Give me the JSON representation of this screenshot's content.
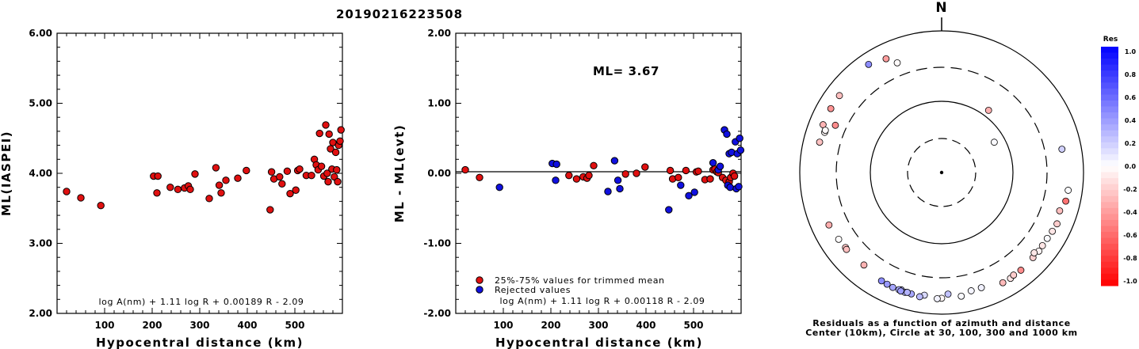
{
  "figure_title": "20190216223508",
  "chart_data": [
    {
      "type": "scatter",
      "ylabel": "ML(IASPEI)",
      "xlabel": "Hypocentral distance (km)",
      "xlim": [
        0,
        600
      ],
      "ylim": [
        2.0,
        6.0
      ],
      "yticks": [
        "2.00",
        "3.00",
        "4.00",
        "5.00",
        "6.00"
      ],
      "xticks": [
        "100",
        "200",
        "300",
        "400",
        "500"
      ],
      "formula": "log A(nm) + 1.11 log R + 0.00189 R - 2.09",
      "series": [
        {
          "color": "#e01010",
          "points": [
            [
              20,
              3.74
            ],
            [
              50,
              3.65
            ],
            [
              92,
              3.54
            ],
            [
              203,
              3.96
            ],
            [
              212,
              3.96
            ],
            [
              210,
              3.72
            ],
            [
              238,
              3.8
            ],
            [
              254,
              3.77
            ],
            [
              268,
              3.79
            ],
            [
              276,
              3.82
            ],
            [
              280,
              3.77
            ],
            [
              290,
              3.99
            ],
            [
              320,
              3.64
            ],
            [
              334,
              4.08
            ],
            [
              341,
              3.83
            ],
            [
              345,
              3.72
            ],
            [
              355,
              3.9
            ],
            [
              380,
              3.93
            ],
            [
              398,
              4.04
            ],
            [
              448,
              3.48
            ],
            [
              451,
              4.02
            ],
            [
              456,
              3.92
            ],
            [
              468,
              3.95
            ],
            [
              473,
              3.85
            ],
            [
              484,
              4.03
            ],
            [
              490,
              3.71
            ],
            [
              502,
              3.76
            ],
            [
              506,
              4.04
            ],
            [
              510,
              4.06
            ],
            [
              524,
              3.97
            ],
            [
              535,
              3.97
            ],
            [
              541,
              4.2
            ],
            [
              545,
              4.12
            ],
            [
              549,
              4.05
            ],
            [
              552,
              4.57
            ],
            [
              556,
              4.1
            ],
            [
              561,
              3.96
            ],
            [
              565,
              4.69
            ],
            [
              568,
              4.0
            ],
            [
              570,
              3.88
            ],
            [
              572,
              4.56
            ],
            [
              575,
              4.35
            ],
            [
              578,
              4.06
            ],
            [
              580,
              4.44
            ],
            [
              583,
              3.95
            ],
            [
              586,
              4.3
            ],
            [
              588,
              4.05
            ],
            [
              590,
              3.88
            ],
            [
              592,
              4.4
            ],
            [
              595,
              4.46
            ],
            [
              597,
              4.62
            ]
          ]
        }
      ]
    },
    {
      "type": "scatter",
      "ylabel": "ML - ML(evt)",
      "xlabel": "Hypocentral distance (km)",
      "xlim": [
        0,
        600
      ],
      "ylim": [
        -2.0,
        2.0
      ],
      "yticks": [
        "-2.00",
        "-1.00",
        "0.00",
        "1.00",
        "2.00"
      ],
      "xticks": [
        "100",
        "200",
        "300",
        "400",
        "500"
      ],
      "ml_label": "ML= 3.67",
      "formula": "log A(nm) + 1.11 log R + 0.00118 R - 2.09",
      "legend": [
        "25%-75% values for trimmed mean",
        "Rejected values"
      ],
      "legend_position": "bottom-left",
      "series": [
        {
          "name": "25%-75% values for trimmed mean",
          "color": "#e01010",
          "points": [
            [
              20,
              0.05
            ],
            [
              50,
              -0.06
            ],
            [
              238,
              -0.03
            ],
            [
              254,
              -0.08
            ],
            [
              268,
              -0.05
            ],
            [
              276,
              -0.07
            ],
            [
              280,
              -0.03
            ],
            [
              290,
              0.11
            ],
            [
              357,
              -0.01
            ],
            [
              380,
              0.0
            ],
            [
              398,
              0.09
            ],
            [
              451,
              0.04
            ],
            [
              456,
              -0.08
            ],
            [
              468,
              -0.06
            ],
            [
              484,
              0.04
            ],
            [
              506,
              0.02
            ],
            [
              510,
              0.03
            ],
            [
              524,
              -0.09
            ],
            [
              535,
              -0.08
            ],
            [
              541,
              0.05
            ],
            [
              545,
              0.06
            ],
            [
              549,
              0.02
            ],
            [
              552,
              0.01
            ],
            [
              561,
              -0.06
            ],
            [
              568,
              -0.1
            ],
            [
              575,
              -0.12
            ],
            [
              578,
              -0.06
            ],
            [
              583,
              0.0
            ],
            [
              586,
              -0.04
            ]
          ]
        },
        {
          "name": "Rejected values",
          "color": "#1010e0",
          "points": [
            [
              92,
              -0.2
            ],
            [
              203,
              0.14
            ],
            [
              212,
              0.13
            ],
            [
              210,
              -0.1
            ],
            [
              320,
              -0.26
            ],
            [
              334,
              0.18
            ],
            [
              341,
              -0.1
            ],
            [
              345,
              -0.22
            ],
            [
              448,
              -0.52
            ],
            [
              473,
              -0.17
            ],
            [
              490,
              -0.32
            ],
            [
              502,
              -0.27
            ],
            [
              541,
              0.15
            ],
            [
              552,
              0.05
            ],
            [
              556,
              0.1
            ],
            [
              565,
              0.62
            ],
            [
              570,
              0.56
            ],
            [
              572,
              -0.17
            ],
            [
              575,
              0.28
            ],
            [
              577,
              -0.2
            ],
            [
              580,
              0.3
            ],
            [
              588,
              0.45
            ],
            [
              590,
              -0.22
            ],
            [
              592,
              0.28
            ],
            [
              595,
              -0.19
            ],
            [
              597,
              0.5
            ],
            [
              599,
              0.33
            ]
          ]
        }
      ]
    },
    {
      "type": "scatter",
      "subtype": "polar",
      "north_label": "N",
      "caption_line1": "Residuals as a function of azimuth and distance",
      "caption_line2": "Center (10km), Circle at 30, 100, 300 and 1000 km",
      "colorbar_title": "Res",
      "colorbar_ticks": [
        "1.0",
        "0.8",
        "0.6",
        "0.4",
        "0.2",
        "0.0",
        "-0.2",
        "-0.4",
        "-0.6",
        "-0.8",
        "-1.0"
      ],
      "points": [
        [
          326,
          690,
          0.45
        ],
        [
          338,
          462,
          -0.02
        ],
        [
          334,
          607,
          -0.38
        ],
        [
          37,
          124,
          -0.31
        ],
        [
          307,
          632,
          -0.25
        ],
        [
          300,
          632,
          -0.42
        ],
        [
          292,
          630,
          -0.3
        ],
        [
          289,
          549,
          -0.02
        ],
        [
          284,
          587,
          -0.24
        ],
        [
          294,
          430,
          -0.45
        ],
        [
          237,
          532,
          -0.01
        ],
        [
          232,
          518,
          -0.22
        ],
        [
          231,
          526,
          -0.25
        ],
        [
          245,
          560,
          -0.32
        ],
        [
          220,
          500,
          -0.3
        ],
        [
          194,
          578,
          0.35
        ],
        [
          203,
          573,
          0.35
        ],
        [
          199,
          558,
          0.25
        ],
        [
          200,
          570,
          0.32
        ],
        [
          197,
          582,
          0.3
        ],
        [
          206,
          562,
          0.4
        ],
        [
          209,
          555,
          0.45
        ],
        [
          196,
          570,
          0.3
        ],
        [
          199,
          583,
          0.38
        ],
        [
          188,
          555,
          0.15
        ],
        [
          180,
          590,
          -0.03
        ],
        [
          171,
          580,
          0.02
        ],
        [
          177,
          518,
          0.24
        ],
        [
          166,
          520,
          0.04
        ],
        [
          147,
          600,
          -0.09
        ],
        [
          145,
          580,
          -0.2
        ],
        [
          151,
          596,
          -0.27
        ],
        [
          141,
          590,
          -0.45
        ],
        [
          133,
          571,
          -0.19
        ],
        [
          129,
          575,
          -0.05
        ],
        [
          126,
          565,
          -0.1
        ],
        [
          118,
          580,
          -0.1
        ],
        [
          114,
          598,
          -0.2
        ],
        [
          108,
          556,
          -0.25
        ],
        [
          103,
          620,
          -0.55
        ],
        [
          98,
          628,
          0.01
        ],
        [
          79,
          528,
          0.18
        ],
        [
          60,
          71,
          0.02
        ],
        [
          290,
          550,
          -0.02
        ],
        [
          182,
          600,
          0.05
        ],
        [
          190,
          598,
          0.27
        ],
        [
          161,
          518,
          0.06
        ],
        [
          122,
          564,
          0.02
        ],
        [
          131,
          529,
          -0.1
        ]
      ]
    }
  ]
}
